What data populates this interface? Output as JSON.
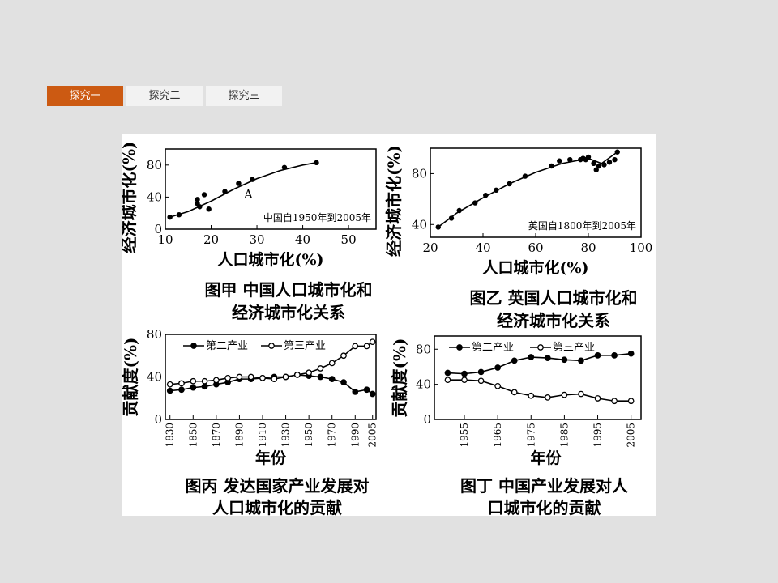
{
  "tabs": [
    {
      "label": "探究一",
      "active": true
    },
    {
      "label": "探究二",
      "active": false
    },
    {
      "label": "探究三",
      "active": false
    }
  ],
  "chart_data": [
    {
      "type": "scatter",
      "ylabel": "经济城市化(%)",
      "xlabel": "人口城市化(%)",
      "annotation": "中国自1950年到2005年",
      "point_label": "A",
      "caption": [
        "图甲  中国人口城市化和",
        "经济城市化关系"
      ],
      "xlim": [
        10,
        56
      ],
      "ylim": [
        0,
        100
      ],
      "xticks": [
        "10",
        "20",
        "30",
        "40",
        "50"
      ],
      "yticks": [
        "0",
        "40",
        "80"
      ],
      "points": [
        [
          11,
          15
        ],
        [
          13,
          18
        ],
        [
          17,
          32
        ],
        [
          17,
          37
        ],
        [
          17.5,
          28
        ],
        [
          18.5,
          43
        ],
        [
          19.5,
          25
        ],
        [
          23,
          47
        ],
        [
          26,
          57
        ],
        [
          29,
          62
        ],
        [
          36,
          77
        ],
        [
          43,
          83
        ]
      ],
      "fit": [
        [
          11,
          15
        ],
        [
          15,
          22
        ],
        [
          20,
          35
        ],
        [
          25,
          50
        ],
        [
          30,
          63
        ],
        [
          35,
          73
        ],
        [
          40,
          80
        ],
        [
          43,
          83
        ]
      ]
    },
    {
      "type": "scatter",
      "ylabel": "经济城市化(%)",
      "xlabel": "人口城市化(%)",
      "annotation": "英国自1800年到2005年",
      "caption": [
        "图乙  英国人口城市化和",
        "经济城市化关系"
      ],
      "xlim": [
        20,
        100
      ],
      "ylim": [
        30,
        100
      ],
      "xticks": [
        "20",
        "40",
        "60",
        "80",
        "100"
      ],
      "yticks": [
        "40",
        "80"
      ],
      "points": [
        [
          23,
          38
        ],
        [
          28,
          45
        ],
        [
          31,
          51
        ],
        [
          37,
          57
        ],
        [
          41,
          63
        ],
        [
          45,
          67
        ],
        [
          50,
          72
        ],
        [
          56,
          78
        ],
        [
          66,
          86
        ],
        [
          69,
          90
        ],
        [
          73,
          91
        ],
        [
          77,
          91
        ],
        [
          78,
          92
        ],
        [
          79,
          91
        ],
        [
          80,
          93
        ],
        [
          82,
          88
        ],
        [
          83,
          83
        ],
        [
          84,
          86
        ],
        [
          86,
          87
        ],
        [
          88,
          89
        ],
        [
          90,
          91
        ],
        [
          91,
          97
        ]
      ],
      "fit": [
        [
          23,
          38
        ],
        [
          30,
          49
        ],
        [
          40,
          61
        ],
        [
          50,
          72
        ],
        [
          60,
          81
        ],
        [
          70,
          88
        ],
        [
          80,
          92
        ],
        [
          85,
          88
        ],
        [
          91,
          97
        ]
      ]
    },
    {
      "type": "line",
      "ylabel": "贡献度(%)",
      "xlabel": "年份",
      "caption": [
        "图丙  发达国家产业发展对",
        "人口城市化的贡献"
      ],
      "ylim": [
        0,
        80
      ],
      "yticks": [
        "0",
        "40",
        "80"
      ],
      "xticks": [
        "1830",
        "1850",
        "1870",
        "1890",
        "1910",
        "1930",
        "1950",
        "1970",
        "1990",
        "2005"
      ],
      "x": [
        1830,
        1840,
        1850,
        1860,
        1870,
        1880,
        1890,
        1900,
        1910,
        1920,
        1930,
        1940,
        1950,
        1960,
        1970,
        1980,
        1990,
        2000,
        2005
      ],
      "series": [
        {
          "name": "第二产业",
          "marker": "filled",
          "values": [
            27,
            28,
            30,
            31,
            33,
            35,
            38,
            38,
            39,
            40,
            40,
            42,
            41,
            40,
            38,
            35,
            26,
            28,
            24
          ]
        },
        {
          "name": "第三产业",
          "marker": "open",
          "values": [
            33,
            34,
            36,
            36,
            37,
            39,
            40,
            40,
            39,
            38,
            40,
            42,
            44,
            48,
            53,
            60,
            69,
            69,
            73
          ]
        }
      ]
    },
    {
      "type": "line",
      "ylabel": "贡献度(%)",
      "xlabel": "年份",
      "caption": [
        "图丁  中国产业发展对人",
        "口城市化的贡献"
      ],
      "ylim": [
        0,
        95
      ],
      "yticks": [
        "0",
        "40",
        "80"
      ],
      "xticks": [
        "1955",
        "1965",
        "1975",
        "1985",
        "1995",
        "2005"
      ],
      "x": [
        1950,
        1955,
        1960,
        1965,
        1970,
        1975,
        1980,
        1985,
        1990,
        1995,
        2000,
        2005
      ],
      "series": [
        {
          "name": "第二产业",
          "marker": "filled",
          "values": [
            53,
            52,
            54,
            59,
            67,
            71,
            70,
            68,
            67,
            73,
            73,
            75
          ]
        },
        {
          "name": "第三产业",
          "marker": "open",
          "values": [
            45,
            45,
            44,
            38,
            31,
            27,
            25,
            28,
            29,
            24,
            21,
            21
          ]
        }
      ]
    }
  ]
}
